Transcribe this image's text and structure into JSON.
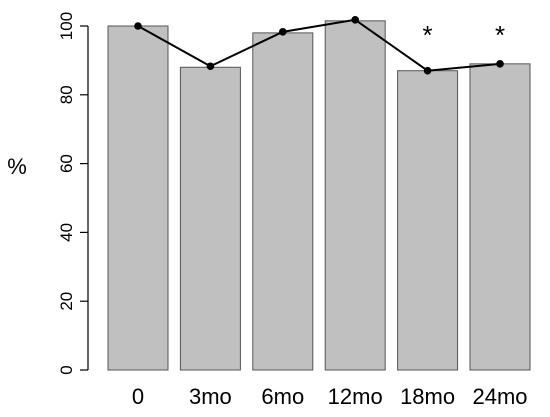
{
  "chart_data": {
    "type": "bar",
    "title": "",
    "xlabel": "",
    "ylabel": "%",
    "categories": [
      "0",
      "3mo",
      "6mo",
      "12mo",
      "18mo",
      "24mo"
    ],
    "series": [
      {
        "values": [
          100,
          88,
          98,
          101.5,
          87,
          89
        ],
        "mark": "bar"
      },
      {
        "values": [
          100,
          88.3,
          98.3,
          101.8,
          87,
          89
        ],
        "mark": "line"
      }
    ],
    "ylim": [
      0,
      102
    ],
    "yticks": [
      0,
      20,
      40,
      60,
      80,
      100
    ],
    "annotations": [
      {
        "category": "18mo",
        "text": "*"
      },
      {
        "category": "24mo",
        "text": "*"
      }
    ],
    "grid": false,
    "colors": {
      "bar_fill": "#c0c0c0",
      "bar_stroke": "#555555",
      "line": "#000000"
    }
  }
}
